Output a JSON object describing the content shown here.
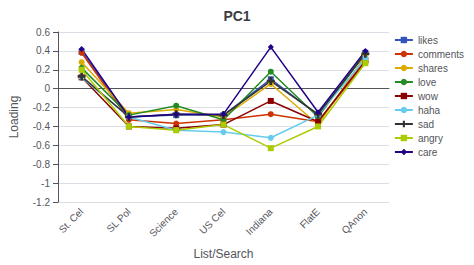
{
  "chart_data": {
    "type": "line",
    "title": "PC1",
    "xlabel": "List/Search",
    "ylabel": "Loading",
    "categories": [
      "St. Cel",
      "SL Pol",
      "Science",
      "US Cel",
      "Indiana",
      "FlatE",
      "QAnon"
    ],
    "ylim": [
      -1.2,
      0.6
    ],
    "yticks": [
      -1.2,
      -1,
      -0.8,
      -0.6,
      -0.4,
      -0.2,
      0,
      0.2,
      0.4,
      0.6
    ],
    "grid": true,
    "legend": "upper right",
    "series": [
      {
        "name": "likes",
        "color": "#3355bb",
        "marker": "square",
        "values": [
          0.39,
          -0.3,
          -0.28,
          -0.28,
          0.1,
          -0.28,
          0.38
        ]
      },
      {
        "name": "comments",
        "color": "#cc3300",
        "marker": "circle",
        "values": [
          0.38,
          -0.33,
          -0.37,
          -0.33,
          -0.27,
          -0.35,
          0.28
        ]
      },
      {
        "name": "shares",
        "color": "#ddaa00",
        "marker": "circle",
        "values": [
          0.28,
          -0.26,
          -0.22,
          -0.3,
          0.05,
          -0.38,
          0.35
        ]
      },
      {
        "name": "love",
        "color": "#228b22",
        "marker": "circle",
        "values": [
          0.22,
          -0.28,
          -0.18,
          -0.33,
          0.18,
          -0.3,
          0.38
        ]
      },
      {
        "name": "wow",
        "color": "#8b0000",
        "marker": "square",
        "values": [
          0.12,
          -0.4,
          -0.42,
          -0.38,
          -0.13,
          -0.35,
          0.3
        ]
      },
      {
        "name": "haha",
        "color": "#66ccee",
        "marker": "circle",
        "values": [
          0.12,
          -0.3,
          -0.44,
          -0.46,
          -0.52,
          -0.28,
          0.32
        ]
      },
      {
        "name": "sad",
        "color": "#333333",
        "marker": "plus",
        "values": [
          0.13,
          -0.3,
          -0.27,
          -0.28,
          0.08,
          -0.27,
          0.37
        ]
      },
      {
        "name": "angry",
        "color": "#aacc00",
        "marker": "square",
        "values": [
          0.2,
          -0.4,
          -0.44,
          -0.38,
          -0.63,
          -0.4,
          0.27
        ]
      },
      {
        "name": "care",
        "color": "#220088",
        "marker": "diamond",
        "values": [
          0.42,
          -0.3,
          -0.27,
          -0.27,
          0.44,
          -0.25,
          0.4
        ]
      }
    ]
  }
}
